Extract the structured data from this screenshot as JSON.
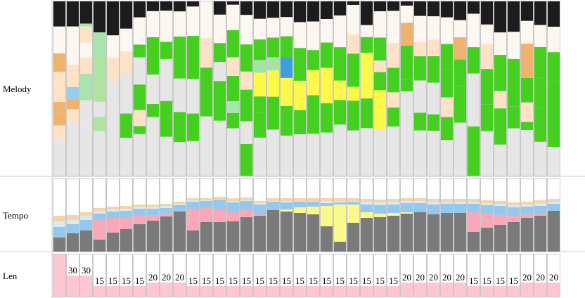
{
  "chart_data": {
    "type": "bar",
    "rows": [
      {
        "key": "melody",
        "label": "Melody"
      },
      {
        "key": "tempo",
        "label": "Tempo"
      },
      {
        "key": "len",
        "label": "Len"
      }
    ],
    "len": [
      "",
      "30",
      "30",
      "15",
      "15",
      "15",
      "15",
      "20",
      "20",
      "20",
      "15",
      "15",
      "15",
      "15",
      "15",
      "15",
      "15",
      "15",
      "15",
      "15",
      "15",
      "15",
      "15",
      "15",
      "15",
      "15",
      "20",
      "20",
      "20",
      "20",
      "20",
      "15",
      "15",
      "15",
      "15",
      "20",
      "20",
      "20"
    ],
    "len_values": [
      60,
      30,
      30,
      15,
      15,
      15,
      15,
      20,
      20,
      20,
      15,
      15,
      15,
      15,
      15,
      15,
      15,
      15,
      15,
      15,
      15,
      15,
      15,
      15,
      15,
      15,
      20,
      20,
      20,
      20,
      20,
      15,
      15,
      15,
      15,
      20,
      20,
      20
    ],
    "tempo_categories": [
      "dark-gray",
      "pink",
      "yellow",
      "light-blue",
      "pale-blue",
      "peach"
    ],
    "tempo": [
      [
        20,
        0,
        0,
        15,
        8,
        8
      ],
      [
        26,
        0,
        0,
        13,
        6,
        7
      ],
      [
        30,
        0,
        0,
        15,
        6,
        5
      ],
      [
        17,
        28,
        0,
        9,
        4,
        4
      ],
      [
        27,
        21,
        0,
        9,
        3,
        4
      ],
      [
        32,
        17,
        0,
        9,
        3,
        4
      ],
      [
        39,
        12,
        0,
        10,
        3,
        3
      ],
      [
        44,
        8,
        0,
        9,
        3,
        3
      ],
      [
        50,
        5,
        0,
        7,
        3,
        3
      ],
      [
        57,
        0,
        0,
        9,
        2,
        3
      ],
      [
        30,
        31,
        0,
        10,
        2,
        3
      ],
      [
        42,
        21,
        0,
        9,
        1,
        3
      ],
      [
        42,
        19,
        0,
        13,
        1,
        3
      ],
      [
        43,
        13,
        0,
        14,
        2,
        4
      ],
      [
        49,
        10,
        0,
        13,
        1,
        4
      ],
      [
        51,
        2,
        0,
        14,
        2,
        3
      ],
      [
        59,
        0,
        0,
        12,
        1,
        4
      ],
      [
        57,
        0,
        3,
        10,
        2,
        4
      ],
      [
        55,
        0,
        8,
        8,
        1,
        4
      ],
      [
        53,
        0,
        11,
        7,
        1,
        4
      ],
      [
        36,
        0,
        29,
        4,
        3,
        4
      ],
      [
        14,
        0,
        53,
        3,
        2,
        4
      ],
      [
        41,
        0,
        26,
        4,
        1,
        4
      ],
      [
        48,
        0,
        8,
        11,
        4,
        4
      ],
      [
        49,
        0,
        5,
        12,
        4,
        4
      ],
      [
        51,
        0,
        4,
        12,
        4,
        4
      ],
      [
        54,
        0,
        2,
        13,
        3,
        4
      ],
      [
        56,
        0,
        0,
        13,
        3,
        4
      ],
      [
        53,
        0,
        0,
        14,
        4,
        4
      ],
      [
        55,
        0,
        0,
        13,
        3,
        4
      ],
      [
        55,
        0,
        0,
        13,
        3,
        4
      ],
      [
        28,
        28,
        0,
        12,
        3,
        4
      ],
      [
        34,
        20,
        0,
        12,
        3,
        4
      ],
      [
        38,
        14,
        0,
        13,
        3,
        4
      ],
      [
        42,
        9,
        0,
        12,
        3,
        4
      ],
      [
        48,
        5,
        0,
        11,
        3,
        4
      ],
      [
        51,
        3,
        0,
        11,
        4,
        4
      ],
      [
        58,
        0,
        0,
        10,
        3,
        4
      ]
    ],
    "melody": [
      [
        [
          "b",
          30
        ],
        [
          "c",
          32
        ],
        [
          "e",
          22
        ],
        [
          "f",
          14
        ],
        [
          "f",
          22
        ],
        [
          "e",
          14
        ],
        [
          "e",
          14
        ],
        [
          "f",
          16
        ],
        [
          "h",
          44
        ]
      ],
      [
        [
          "b",
          34
        ],
        [
          "c",
          52
        ],
        [
          "f",
          30
        ],
        [
          "p",
          16
        ],
        [
          "e",
          14
        ],
        [
          "f",
          18
        ],
        [
          "h",
          72
        ],
        [
          "h",
          0
        ]
      ],
      [
        [
          "b",
          30
        ],
        [
          "g",
          4
        ],
        [
          "f",
          22
        ],
        [
          "c",
          20
        ],
        [
          "f",
          22
        ],
        [
          "g",
          18
        ],
        [
          "g",
          18
        ],
        [
          "h",
          30
        ],
        [
          "h",
          72
        ]
      ],
      [
        [
          "b",
          42
        ],
        [
          "g",
          32
        ],
        [
          "d",
          62
        ],
        [
          "h",
          20
        ],
        [
          "d",
          20
        ],
        [
          "h",
          60
        ],
        [
          "h",
          0
        ]
      ],
      [
        [
          "b",
          46
        ],
        [
          "c",
          30
        ],
        [
          "f",
          32
        ],
        [
          "h",
          34
        ],
        [
          "h",
          44
        ],
        [
          "h",
          50
        ]
      ],
      [
        [
          "b",
          36
        ],
        [
          "c",
          30
        ],
        [
          "f",
          30
        ],
        [
          "h",
          52
        ],
        [
          "a",
          32
        ],
        [
          "h",
          50
        ]
      ],
      [
        [
          "b",
          20
        ],
        [
          "c",
          34
        ],
        [
          "a",
          16
        ],
        [
          "h",
          34
        ],
        [
          "a",
          32
        ],
        [
          "f",
          20
        ],
        [
          "a",
          10
        ],
        [
          "h",
          52
        ]
      ],
      [
        [
          "b",
          12
        ],
        [
          "c",
          32
        ],
        [
          "a",
          46
        ],
        [
          "h",
          36
        ],
        [
          "a",
          16
        ],
        [
          "h",
          72
        ]
      ],
      [
        [
          "b",
          12
        ],
        [
          "c",
          40
        ],
        [
          "a",
          22
        ],
        [
          "h",
          54
        ],
        [
          "a",
          46
        ],
        [
          "h",
          50
        ]
      ],
      [
        [
          "b",
          12
        ],
        [
          "c",
          30
        ],
        [
          "a",
          50
        ],
        [
          "h",
          40
        ],
        [
          "a",
          36
        ],
        [
          "h",
          40
        ]
      ],
      [
        [
          "b",
          6
        ],
        [
          "c",
          34
        ],
        [
          "a",
          50
        ],
        [
          "h",
          40
        ],
        [
          "a",
          32
        ],
        [
          "h",
          40
        ]
      ],
      [
        [
          "b",
          0
        ],
        [
          "c",
          42
        ],
        [
          "f",
          34
        ],
        [
          "a",
          56
        ],
        [
          "h",
          36
        ],
        [
          "h",
          32
        ]
      ],
      [
        [
          "b",
          14
        ],
        [
          "c",
          30
        ],
        [
          "a",
          20
        ],
        [
          "h",
          20
        ],
        [
          "a",
          42
        ],
        [
          "h",
          28
        ],
        [
          "h",
          30
        ]
      ],
      [
        [
          "b",
          4
        ],
        [
          "c",
          30
        ],
        [
          "a",
          32
        ],
        [
          "f",
          22
        ],
        [
          "a",
          30
        ],
        [
          "g",
          14
        ],
        [
          "a",
          18
        ],
        [
          "h",
          56
        ]
      ],
      [
        [
          "b",
          12
        ],
        [
          "c",
          26
        ],
        [
          "a",
          24
        ],
        [
          "f",
          16
        ],
        [
          "a",
          28
        ],
        [
          "h",
          20
        ],
        [
          "a",
          28
        ],
        [
          "h",
          0
        ]
      ],
      [
        [
          "b",
          22
        ],
        [
          "c",
          26
        ],
        [
          "a",
          26
        ],
        [
          "j",
          16
        ],
        [
          "y",
          30
        ],
        [
          "a",
          20
        ],
        [
          "a",
          32
        ],
        [
          "h",
          48
        ]
      ],
      [
        [
          "b",
          20
        ],
        [
          "c",
          24
        ],
        [
          "a",
          24
        ],
        [
          "j",
          16
        ],
        [
          "y",
          32
        ],
        [
          "a",
          16
        ],
        [
          "a",
          24
        ],
        [
          "h",
          56
        ]
      ],
      [
        [
          "b",
          18
        ],
        [
          "c",
          22
        ],
        [
          "a",
          48
        ],
        [
          "y",
          32
        ],
        [
          "a",
          34
        ],
        [
          "h",
          46
        ]
      ],
      [
        [
          "b",
          24
        ],
        [
          "c",
          30
        ],
        [
          "a",
          38
        ],
        [
          "y",
          34
        ],
        [
          "a",
          28
        ],
        [
          "h",
          48
        ]
      ],
      [
        [
          "b",
          24
        ],
        [
          "c",
          34
        ],
        [
          "a",
          24
        ],
        [
          "y",
          30
        ],
        [
          "a",
          46
        ],
        [
          "h",
          50
        ]
      ],
      [
        [
          "b",
          18
        ],
        [
          "c",
          24
        ],
        [
          "a",
          26
        ],
        [
          "y",
          36
        ],
        [
          "a",
          30
        ],
        [
          "h",
          44
        ]
      ],
      [
        [
          "b",
          16
        ],
        [
          "c",
          36
        ],
        [
          "a",
          38
        ],
        [
          "y",
          22
        ],
        [
          "a",
          28
        ],
        [
          "h",
          58
        ]
      ],
      [
        [
          "b",
          4
        ],
        [
          "c",
          34
        ],
        [
          "f",
          22
        ],
        [
          "a",
          38
        ],
        [
          "y",
          16
        ],
        [
          "a",
          34
        ],
        [
          "h",
          52
        ]
      ],
      [
        [
          "b",
          24
        ],
        [
          "c",
          12
        ],
        [
          "a",
          16
        ],
        [
          "y",
          46
        ],
        [
          "a",
          30
        ],
        [
          "h",
          48
        ]
      ],
      [
        [
          "b",
          12
        ],
        [
          "c",
          32
        ],
        [
          "a",
          28
        ],
        [
          "f",
          14
        ],
        [
          "a",
          22
        ],
        [
          "y",
          48
        ],
        [
          "h",
          56
        ]
      ],
      [
        [
          "b",
          10
        ],
        [
          "c",
          34
        ],
        [
          "f",
          26
        ],
        [
          "a",
          26
        ],
        [
          "f",
          16
        ],
        [
          "a",
          20
        ],
        [
          "h",
          52
        ]
      ],
      [
        [
          "b",
          6
        ],
        [
          "c",
          24
        ],
        [
          "e",
          32
        ],
        [
          "a",
          48
        ],
        [
          "a",
          16
        ],
        [
          "h",
          38
        ],
        [
          "h",
          80
        ]
      ],
      [
        [
          "b",
          18
        ],
        [
          "c",
          32
        ],
        [
          "f",
          18
        ],
        [
          "a",
          30
        ],
        [
          "h",
          40
        ],
        [
          "a",
          22
        ],
        [
          "h",
          56
        ]
      ],
      [
        [
          "b",
          18
        ],
        [
          "c",
          28
        ],
        [
          "f",
          20
        ],
        [
          "a",
          32
        ],
        [
          "h",
          38
        ],
        [
          "a",
          20
        ],
        [
          "h",
          54
        ]
      ],
      [
        [
          "b",
          18
        ],
        [
          "c",
          30
        ],
        [
          "a",
          28
        ],
        [
          "a",
          32
        ],
        [
          "f",
          22
        ],
        [
          "a",
          26
        ],
        [
          "h",
          40
        ]
      ],
      [
        [
          "b",
          22
        ],
        [
          "c",
          20
        ],
        [
          "e",
          26
        ],
        [
          "a",
          30
        ],
        [
          "a",
          44
        ],
        [
          "h",
          62
        ]
      ],
      [
        [
          "b",
          14
        ],
        [
          "c",
          38
        ],
        [
          "a",
          30
        ],
        [
          "h",
          60
        ],
        [
          "a",
          56
        ],
        [
          "h",
          0
        ]
      ],
      [
        [
          "b",
          26
        ],
        [
          "c",
          22
        ],
        [
          "f",
          28
        ],
        [
          "a",
          40
        ],
        [
          "a",
          30
        ],
        [
          "h",
          50
        ]
      ],
      [
        [
          "b",
          36
        ],
        [
          "c",
          26
        ],
        [
          "a",
          42
        ],
        [
          "f",
          20
        ],
        [
          "a",
          42
        ],
        [
          "h",
          36
        ]
      ],
      [
        [
          "b",
          36
        ],
        [
          "c",
          32
        ],
        [
          "a",
          30
        ],
        [
          "a",
          26
        ],
        [
          "a",
          26
        ],
        [
          "h",
          56
        ]
      ],
      [
        [
          "b",
          24
        ],
        [
          "c",
          28
        ],
        [
          "e",
          42
        ],
        [
          "a",
          30
        ],
        [
          "f",
          24
        ],
        [
          "a",
          10
        ],
        [
          "h",
          56
        ]
      ],
      [
        [
          "b",
          28
        ],
        [
          "c",
          26
        ],
        [
          "a",
          36
        ],
        [
          "a",
          36
        ],
        [
          "a",
          40
        ],
        [
          "h",
          40
        ]
      ],
      [
        [
          "b",
          30
        ],
        [
          "c",
          30
        ],
        [
          "a",
          34
        ],
        [
          "a",
          36
        ],
        [
          "a",
          42
        ],
        [
          "h",
          34
        ]
      ]
    ],
    "colors": {
      "a": "#45d021",
      "b": "#1c1c1c",
      "c": "#fdf7f1",
      "d": "#aee4a0",
      "e": "#f0b36e",
      "f": "#fde2c8",
      "g": "#a6e6ac",
      "h": "#e6e6e6",
      "j": "#a4e4a4",
      "p": "#98cdec",
      "y": "#fdf94a",
      "blue": "#3f9ee0",
      "tempo_dark": "#7a7a7a",
      "tempo_pink": "#f8a8b8",
      "tempo_yellow": "#fbf98a",
      "tempo_blue": "#94c8ec",
      "tempo_paleblue": "#d6ecf4",
      "tempo_peach": "#f6d2a8",
      "len_pink": "#fcc6d3",
      "border": "#c8c8c8"
    }
  }
}
